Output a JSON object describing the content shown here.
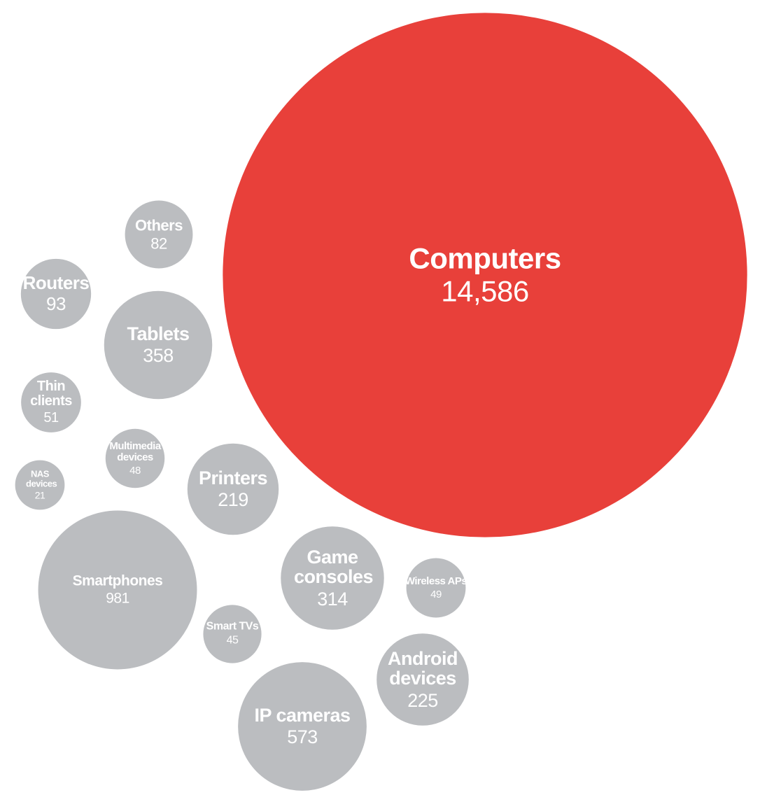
{
  "chart_data": {
    "type": "bubble",
    "categories": [
      "Computers",
      "Others",
      "Routers",
      "Tablets",
      "Thin clients",
      "Multimedia devices",
      "NAS devices",
      "Printers",
      "Smartphones",
      "Game consoles",
      "Wireless APs",
      "Smart TVs",
      "Android devices",
      "IP cameras"
    ],
    "values": [
      14586,
      82,
      93,
      358,
      51,
      48,
      21,
      219,
      981,
      314,
      49,
      45,
      225,
      573
    ],
    "value_labels": [
      "14,586",
      "82",
      "93",
      "358",
      "51",
      "48",
      "21",
      "219",
      "981",
      "314",
      "49",
      "45",
      "225",
      "573"
    ],
    "colors": [
      "#e8403a",
      "#bbbdc0",
      "#bbbdc0",
      "#bbbdc0",
      "#bbbdc0",
      "#bbbdc0",
      "#bbbdc0",
      "#bbbdc0",
      "#bbbdc0",
      "#bbbdc0",
      "#bbbdc0",
      "#bbbdc0",
      "#bbbdc0",
      "#bbbdc0"
    ]
  }
}
